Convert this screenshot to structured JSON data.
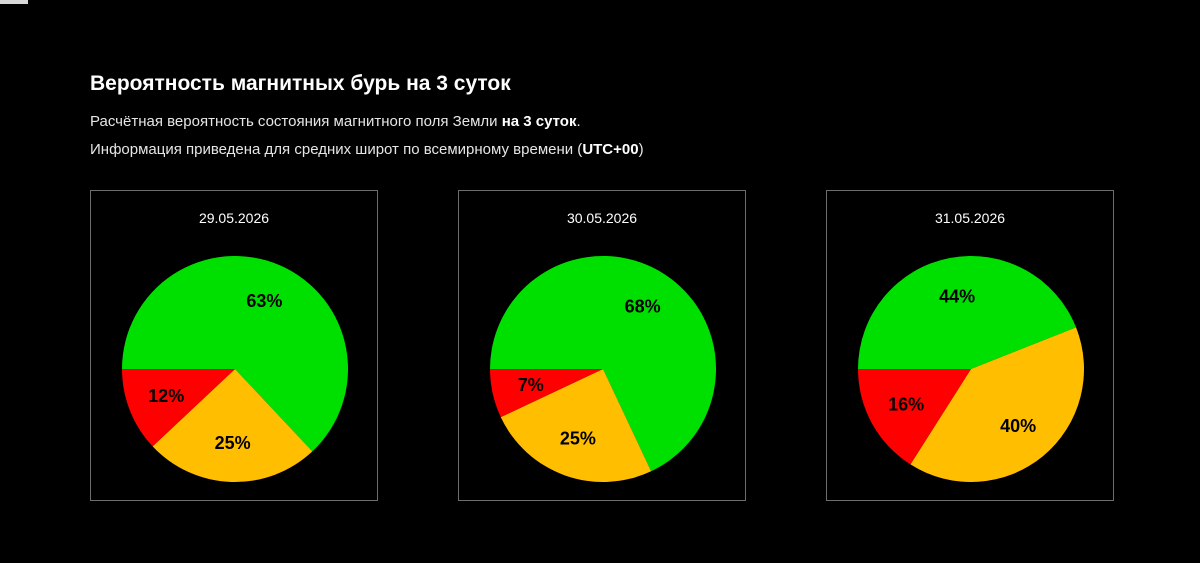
{
  "header": {
    "title": "Вероятность магнитных бурь на 3 суток",
    "line1_prefix": "Расчётная вероятность состояния магнитного поля Земли ",
    "line1_bold": "на 3 суток",
    "line1_suffix": ".",
    "line2_prefix": "Информация приведена для средних широт по всемирному времени (",
    "line2_bold": "UTC+00",
    "line2_suffix": ")"
  },
  "colors": {
    "green": "#00e000",
    "yellow": "#ffbf00",
    "red": "#ff0000",
    "background": "#000000"
  },
  "chart_data": [
    {
      "type": "pie",
      "title": "29.05.2026",
      "slices": [
        {
          "value": 63,
          "label": "63%",
          "color": "#00e000"
        },
        {
          "value": 25,
          "label": "25%",
          "color": "#ffbf00"
        },
        {
          "value": 12,
          "label": "12%",
          "color": "#ff0000"
        }
      ]
    },
    {
      "type": "pie",
      "title": "30.05.2026",
      "slices": [
        {
          "value": 68,
          "label": "68%",
          "color": "#00e000"
        },
        {
          "value": 25,
          "label": "25%",
          "color": "#ffbf00"
        },
        {
          "value": 7,
          "label": "7%",
          "color": "#ff0000"
        }
      ]
    },
    {
      "type": "pie",
      "title": "31.05.2026",
      "slices": [
        {
          "value": 44,
          "label": "44%",
          "color": "#00e000"
        },
        {
          "value": 40,
          "label": "40%",
          "color": "#ffbf00"
        },
        {
          "value": 16,
          "label": "16%",
          "color": "#ff0000"
        }
      ]
    }
  ]
}
